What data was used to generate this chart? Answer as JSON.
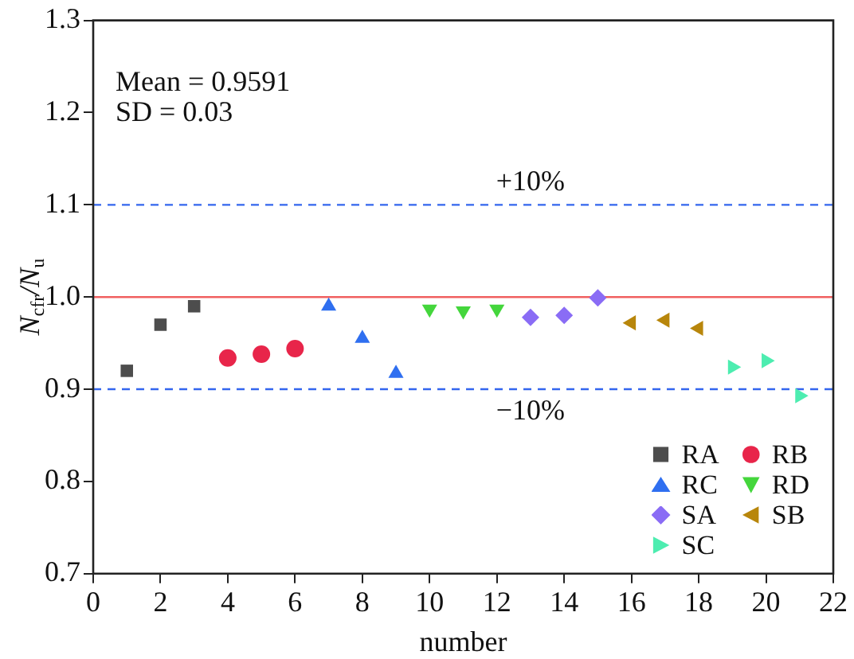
{
  "chart_data": {
    "type": "scatter",
    "xlabel": "number",
    "ylabel": "N$_{cfr}$/N$_{u}$",
    "xlim": [
      0,
      22
    ],
    "xticks": [
      0,
      2,
      4,
      6,
      8,
      10,
      12,
      14,
      16,
      18,
      20,
      22
    ],
    "ylim": [
      0.7,
      1.3
    ],
    "yticks": [
      0.7,
      0.8,
      0.9,
      {
        "value": 1,
        "label": "1.0"
      },
      1.1,
      1.2,
      1.3
    ],
    "grid": false,
    "legend": "bottom right",
    "series": [
      {
        "name": "RA",
        "color": "#4d4d4d",
        "marker": "square",
        "x": [
          1,
          2,
          3
        ],
        "values": [
          0.92,
          0.97,
          0.99
        ]
      },
      {
        "name": "RB",
        "color": "#e8254a",
        "marker": "circle",
        "x": [
          4,
          5,
          6
        ],
        "values": [
          0.934,
          0.938,
          0.944
        ]
      },
      {
        "name": "RC",
        "color": "#2f6ff0",
        "marker": "triangle",
        "x": [
          7,
          8,
          9
        ],
        "values": [
          0.99,
          0.955,
          0.917
        ]
      },
      {
        "name": "RD",
        "color": "#44d63c",
        "marker": "triangle-down",
        "x": [
          10,
          11,
          12
        ],
        "values": [
          0.987,
          0.985,
          0.987
        ]
      },
      {
        "name": "SA",
        "color": "#8a6cf5",
        "marker": "diamond",
        "x": [
          13,
          14,
          15
        ],
        "values": [
          0.978,
          0.98,
          0.999
        ]
      },
      {
        "name": "SB",
        "color": "#b8860b",
        "marker": "triangle-left",
        "x": [
          16,
          17,
          18
        ],
        "values": [
          0.972,
          0.975,
          0.966
        ]
      },
      {
        "name": "SC",
        "color": "#4dedb0",
        "marker": "triangle-right",
        "x": [
          19,
          20,
          21
        ],
        "values": [
          0.924,
          0.931,
          0.893
        ]
      }
    ],
    "ref_lines": [
      {
        "axis": "y",
        "value": 1.1,
        "color": "#3366ee",
        "line_style": "dashed"
      },
      {
        "axis": "y",
        "value": 1.0,
        "color": "#f06060",
        "line_style": "solid"
      },
      {
        "axis": "y",
        "value": 0.9,
        "color": "#3366ee",
        "line_style": "dashed"
      }
    ],
    "annotations": [
      "Mean = 0.9591",
      "SD = 0.03",
      {
        "text": "+10%",
        "x": 13,
        "y": 1.1
      },
      {
        "text": "−10%",
        "x": 13,
        "y": 0.9
      }
    ]
  }
}
